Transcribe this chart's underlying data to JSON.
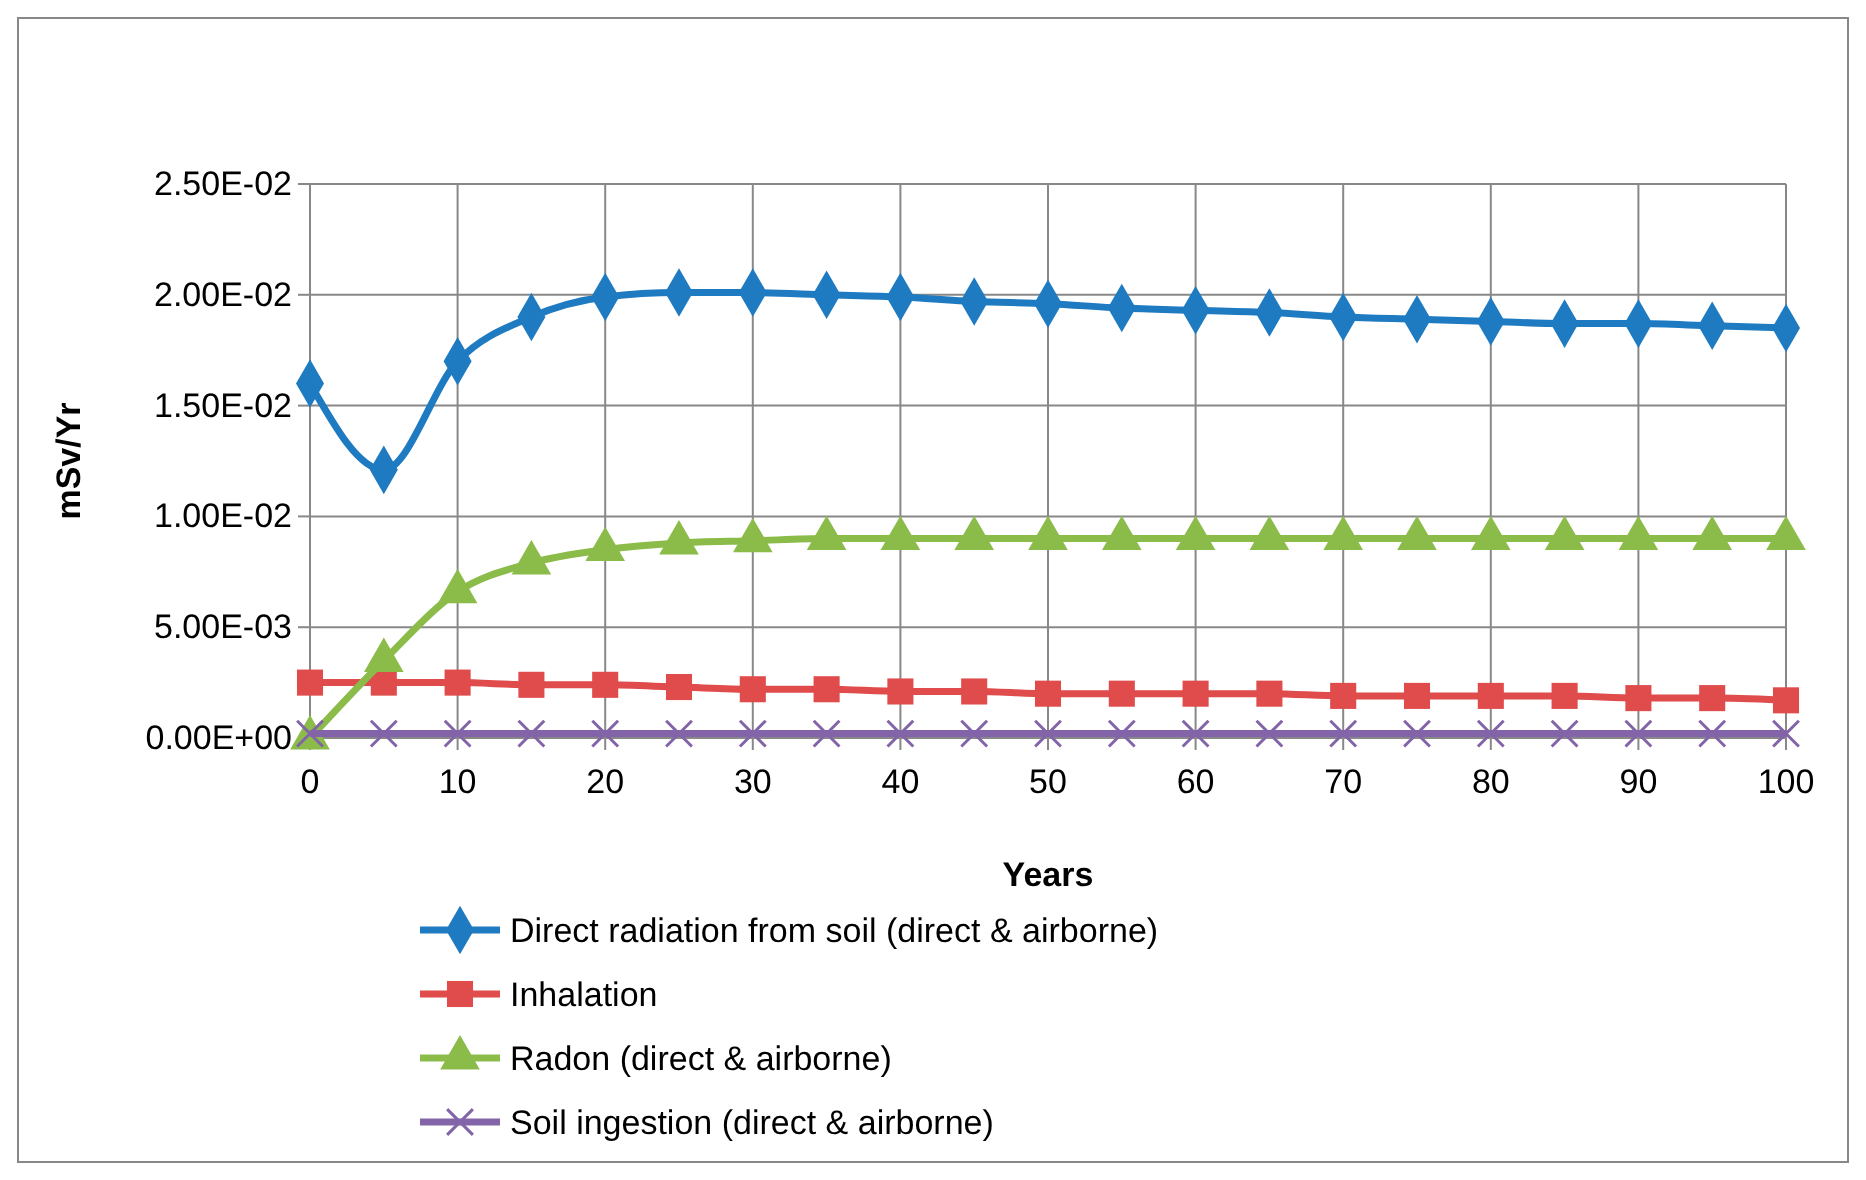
{
  "chart_data": {
    "type": "line",
    "xlabel": "Years",
    "ylabel": "mSv/Yr",
    "x": [
      0,
      5,
      10,
      15,
      20,
      25,
      30,
      35,
      40,
      45,
      50,
      55,
      60,
      65,
      70,
      75,
      80,
      85,
      90,
      95,
      100
    ],
    "xlim": [
      0,
      100
    ],
    "xticks": [
      0,
      10,
      20,
      30,
      40,
      50,
      60,
      70,
      80,
      90,
      100
    ],
    "ylim": [
      0,
      0.025
    ],
    "yticks": [
      {
        "value": 0,
        "label": "0.00E+00"
      },
      {
        "value": 0.005,
        "label": "5.00E-03"
      },
      {
        "value": 0.01,
        "label": "1.00E-02"
      },
      {
        "value": 0.015,
        "label": "1.50E-02"
      },
      {
        "value": 0.02,
        "label": "2.00E-02"
      },
      {
        "value": 0.025,
        "label": "2.50E-02"
      }
    ],
    "grid": true,
    "legend": "bottom",
    "series": [
      {
        "name": "Direct radiation from soil (direct & airborne)",
        "color": "#1f7bc1",
        "marker": "diamond",
        "values": [
          0.016,
          0.0121,
          0.017,
          0.019,
          0.0199,
          0.0201,
          0.0201,
          0.02,
          0.0199,
          0.0197,
          0.0196,
          0.0194,
          0.0193,
          0.0192,
          0.019,
          0.0189,
          0.0188,
          0.0187,
          0.0187,
          0.0186,
          0.0185
        ]
      },
      {
        "name": "Inhalation",
        "color": "#e04b4b",
        "marker": "square",
        "values": [
          0.0025,
          0.0025,
          0.0025,
          0.0024,
          0.0024,
          0.0023,
          0.0022,
          0.0022,
          0.0021,
          0.0021,
          0.002,
          0.002,
          0.002,
          0.002,
          0.0019,
          0.0019,
          0.0019,
          0.0019,
          0.0018,
          0.0018,
          0.0017
        ]
      },
      {
        "name": "Radon (direct & airborne)",
        "color": "#8bbb48",
        "marker": "triangle",
        "values": [
          0,
          0.0035,
          0.0066,
          0.0079,
          0.0085,
          0.0088,
          0.0089,
          0.009,
          0.009,
          0.009,
          0.009,
          0.009,
          0.009,
          0.009,
          0.009,
          0.009,
          0.009,
          0.009,
          0.009,
          0.009,
          0.009
        ]
      },
      {
        "name": "Soil ingestion (direct & airborne)",
        "color": "#8364a8",
        "marker": "cross",
        "values": [
          0.0002,
          0.0002,
          0.0002,
          0.0002,
          0.0002,
          0.0002,
          0.0002,
          0.0002,
          0.0002,
          0.0002,
          0.0002,
          0.0002,
          0.0002,
          0.0002,
          0.0002,
          0.0002,
          0.0002,
          0.0002,
          0.0002,
          0.0002,
          0.0002
        ]
      }
    ]
  }
}
